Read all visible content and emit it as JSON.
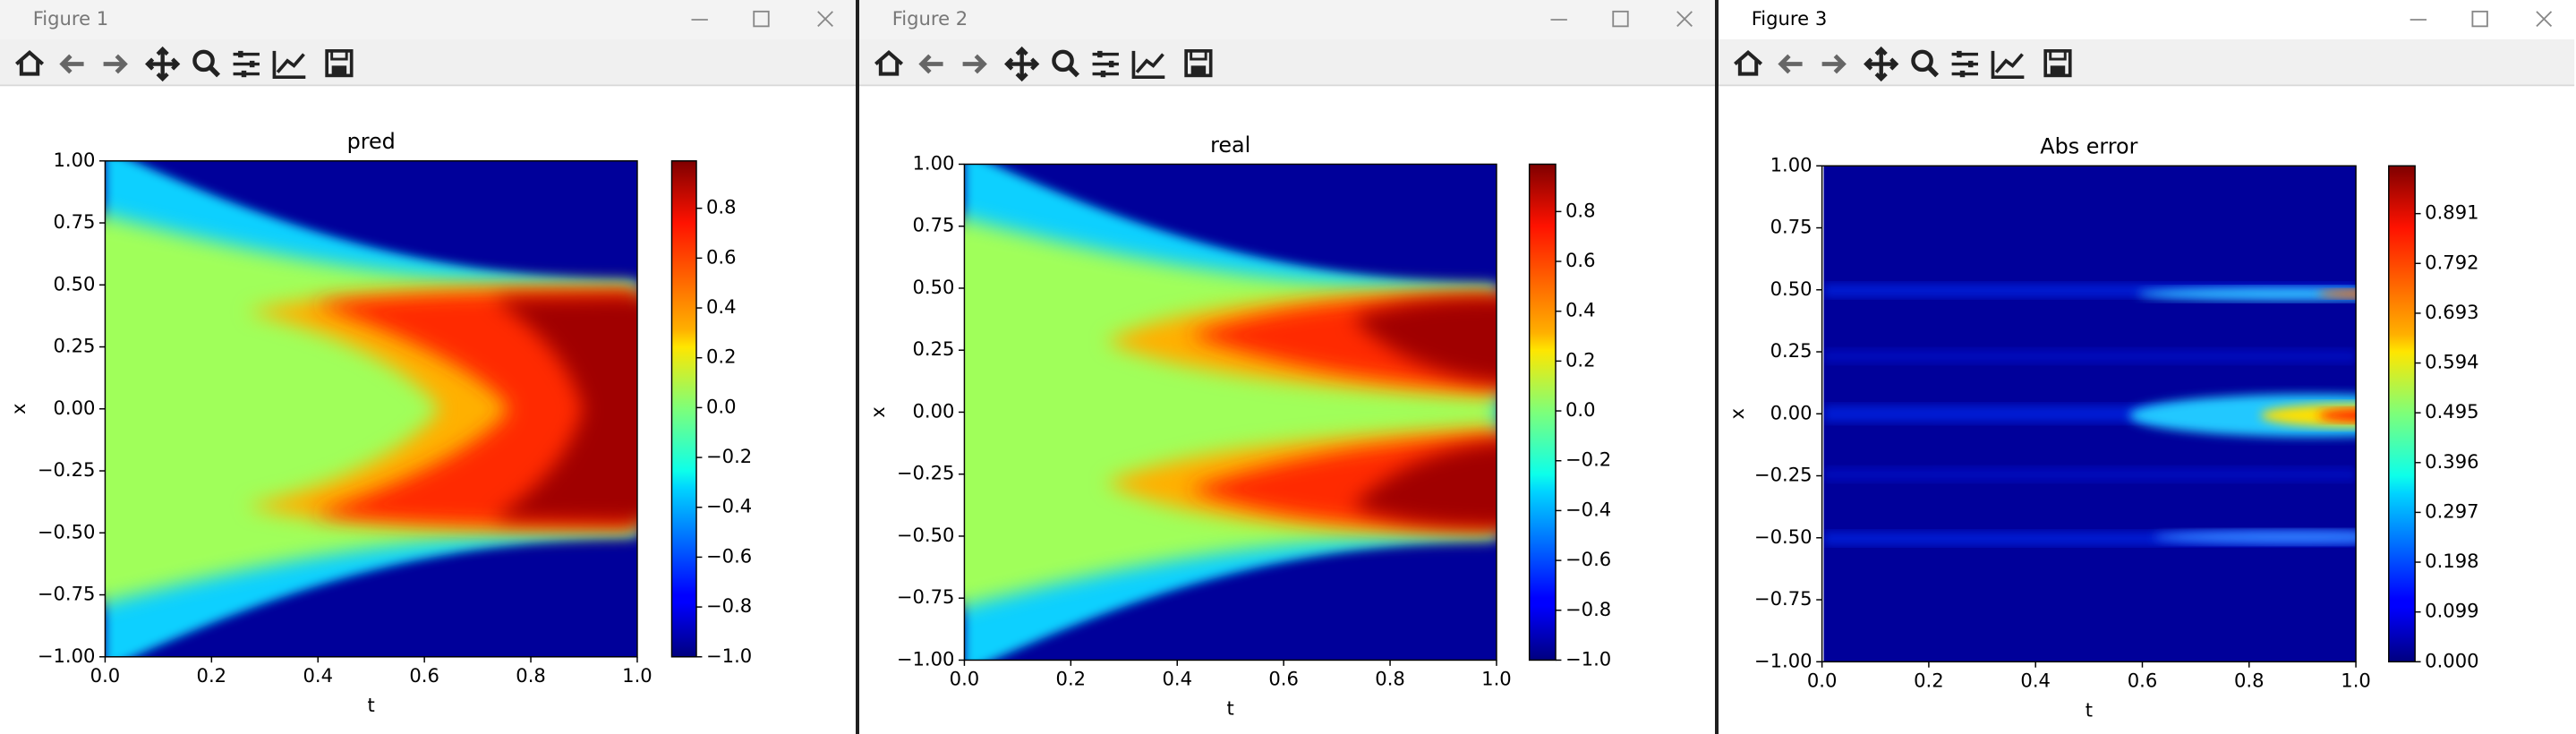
{
  "windows": [
    {
      "title": "Figure 1"
    },
    {
      "title": "Figure 2"
    },
    {
      "title": "Figure 3"
    }
  ],
  "chart_data": [
    {
      "type": "heatmap",
      "title": "pred",
      "xlabel": "t",
      "ylabel": "x",
      "colormap": "jet",
      "xlim": [
        0,
        1
      ],
      "ylim": [
        -1,
        1
      ],
      "xticks": [
        {
          "value": 0,
          "label": "0.0"
        },
        0.2,
        0.4,
        0.6,
        0.8,
        {
          "value": 1,
          "label": "1.0"
        }
      ],
      "yticks": [
        {
          "value": -1,
          "label": "−1.00"
        },
        {
          "value": -0.75,
          "label": "−0.75"
        },
        {
          "value": -0.5,
          "label": "−0.50"
        },
        {
          "value": -0.25,
          "label": "−0.25"
        },
        {
          "value": 0,
          "label": "0.00"
        },
        0.25,
        {
          "value": 0.5,
          "label": "0.50"
        },
        0.75,
        {
          "value": 1,
          "label": "1.00"
        }
      ],
      "clim": [
        -1,
        0.99
      ],
      "cticks": [
        {
          "value": -1,
          "label": "−1.0"
        },
        {
          "value": -0.8,
          "label": "−0.8"
        },
        {
          "value": -0.6,
          "label": "−0.6"
        },
        {
          "value": -0.4,
          "label": "−0.4"
        },
        {
          "value": -0.2,
          "label": "−0.2"
        },
        {
          "value": 0,
          "label": "0.0"
        },
        0.2,
        0.4,
        0.6,
        0.8
      ]
    },
    {
      "type": "heatmap",
      "title": "real",
      "xlabel": "t",
      "ylabel": "x",
      "colormap": "jet",
      "xlim": [
        0,
        1
      ],
      "ylim": [
        -1,
        1
      ],
      "xticks": [
        {
          "value": 0,
          "label": "0.0"
        },
        0.2,
        0.4,
        0.6,
        0.8,
        {
          "value": 1,
          "label": "1.0"
        }
      ],
      "yticks": [
        {
          "value": -1,
          "label": "−1.00"
        },
        {
          "value": -0.75,
          "label": "−0.75"
        },
        {
          "value": -0.5,
          "label": "−0.50"
        },
        {
          "value": -0.25,
          "label": "−0.25"
        },
        {
          "value": 0,
          "label": "0.00"
        },
        0.25,
        {
          "value": 0.5,
          "label": "0.50"
        },
        0.75,
        {
          "value": 1,
          "label": "1.00"
        }
      ],
      "clim": [
        -1,
        0.99
      ],
      "cticks": [
        {
          "value": -1,
          "label": "−1.0"
        },
        {
          "value": -0.8,
          "label": "−0.8"
        },
        {
          "value": -0.6,
          "label": "−0.6"
        },
        {
          "value": -0.4,
          "label": "−0.4"
        },
        {
          "value": -0.2,
          "label": "−0.2"
        },
        {
          "value": 0,
          "label": "0.0"
        },
        0.2,
        0.4,
        0.6,
        0.8
      ]
    },
    {
      "type": "heatmap",
      "title": "Abs error",
      "xlabel": "t",
      "ylabel": "x",
      "colormap": "jet",
      "xlim": [
        0,
        1
      ],
      "ylim": [
        -1,
        1
      ],
      "xticks": [
        {
          "value": 0,
          "label": "0.0"
        },
        0.2,
        0.4,
        0.6,
        0.8,
        {
          "value": 1,
          "label": "1.0"
        }
      ],
      "yticks": [
        {
          "value": -1,
          "label": "−1.00"
        },
        {
          "value": -0.75,
          "label": "−0.75"
        },
        {
          "value": -0.5,
          "label": "−0.50"
        },
        {
          "value": -0.25,
          "label": "−0.25"
        },
        {
          "value": 0,
          "label": "0.00"
        },
        0.25,
        {
          "value": 0.5,
          "label": "0.50"
        },
        0.75,
        {
          "value": 1,
          "label": "1.00"
        }
      ],
      "clim": [
        0,
        0.986
      ],
      "cticks": [
        {
          "value": 0,
          "label": "0.000"
        },
        0.099,
        0.198,
        0.297,
        0.396,
        0.495,
        0.594,
        0.693,
        0.792,
        0.891
      ]
    }
  ]
}
